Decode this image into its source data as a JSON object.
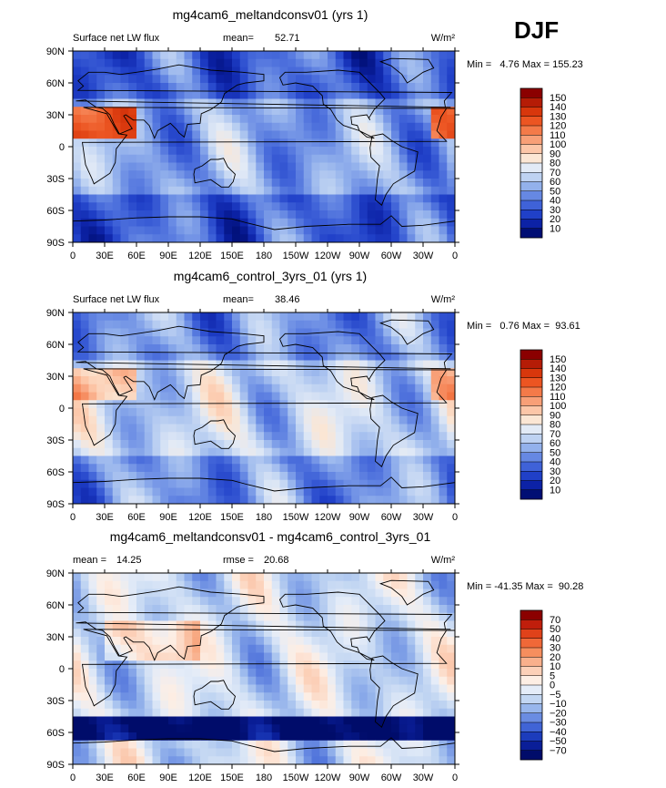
{
  "season_label": "DJF",
  "units": "W/m²",
  "x_tick_labels": [
    "0",
    "30E",
    "60E",
    "90E",
    "120E",
    "150E",
    "180",
    "150W",
    "120W",
    "90W",
    "60W",
    "30W",
    "0"
  ],
  "y_tick_labels": [
    "90N",
    "60N",
    "30N",
    "0",
    "30S",
    "60S",
    "90S"
  ],
  "chart_data": [
    {
      "type": "heatmap",
      "title": "mg4cam6_meltandconsv01 (yrs 1)",
      "left_text": "Surface net LW flux",
      "stat_label": "mean=",
      "stat_value": "52.71",
      "rmse_label": "",
      "rmse_value": "",
      "units": "W/m²",
      "minmax_text": "Min =   4.76 Max = 155.23",
      "min": 4.76,
      "max": 155.23,
      "mean": 52.71,
      "xlim": [
        0,
        360
      ],
      "ylim": [
        -90,
        90
      ],
      "colorbar_levels": [
        "150",
        "140",
        "130",
        "120",
        "110",
        "100",
        "90",
        "80",
        "70",
        "60",
        "50",
        "40",
        "30",
        "20",
        "10"
      ],
      "colorbar_colors": [
        "#8b0000",
        "#b51c06",
        "#d8370c",
        "#ec5522",
        "#f47a49",
        "#f89f77",
        "#fcc6a8",
        "#fbe6d4",
        "#e2eaf6",
        "#bed2f2",
        "#93b1ec",
        "#6688e3",
        "#3f62d8",
        "#2040c8",
        "#0c22a6",
        "#000e74"
      ]
    },
    {
      "type": "heatmap",
      "title": "mg4cam6_control_3yrs_01 (yrs 1)",
      "left_text": "Surface net LW flux",
      "stat_label": "mean=",
      "stat_value": "38.46",
      "rmse_label": "",
      "rmse_value": "",
      "units": "W/m²",
      "minmax_text": "Min =   0.76 Max =  93.61",
      "min": 0.76,
      "max": 93.61,
      "mean": 38.46,
      "xlim": [
        0,
        360
      ],
      "ylim": [
        -90,
        90
      ],
      "colorbar_levels": [
        "150",
        "140",
        "130",
        "120",
        "110",
        "100",
        "90",
        "80",
        "70",
        "60",
        "50",
        "40",
        "30",
        "20",
        "10"
      ],
      "colorbar_colors": [
        "#8b0000",
        "#b51c06",
        "#d8370c",
        "#ec5522",
        "#f47a49",
        "#f89f77",
        "#fcc6a8",
        "#fbe6d4",
        "#e2eaf6",
        "#bed2f2",
        "#93b1ec",
        "#6688e3",
        "#3f62d8",
        "#2040c8",
        "#0c22a6",
        "#000e74"
      ]
    },
    {
      "type": "heatmap",
      "title": "mg4cam6_meltandconsv01 - mg4cam6_control_3yrs_01",
      "left_text": "",
      "stat_label": "mean =",
      "stat_value": "14.25",
      "rmse_label": "rmse =",
      "rmse_value": "20.68",
      "units": "W/m²",
      "minmax_text": "Min = -41.35 Max =  90.28",
      "min": -41.35,
      "max": 90.28,
      "mean": 14.25,
      "xlim": [
        0,
        360
      ],
      "ylim": [
        -90,
        90
      ],
      "colorbar_levels": [
        "70",
        "50",
        "40",
        "30",
        "20",
        "10",
        "5",
        "0",
        "−5",
        "−10",
        "−20",
        "−30",
        "−40",
        "−50",
        "−70"
      ],
      "colorbar_colors": [
        "#8b0000",
        "#c01e0c",
        "#e0421a",
        "#f06838",
        "#f68e5e",
        "#f9b08c",
        "#fcd0b8",
        "#fdeee4",
        "#e4ecf8",
        "#c2d6f2",
        "#98b6ec",
        "#6a8ce2",
        "#4064d6",
        "#1c3cbc",
        "#0a1e98",
        "#000c6a"
      ]
    }
  ]
}
